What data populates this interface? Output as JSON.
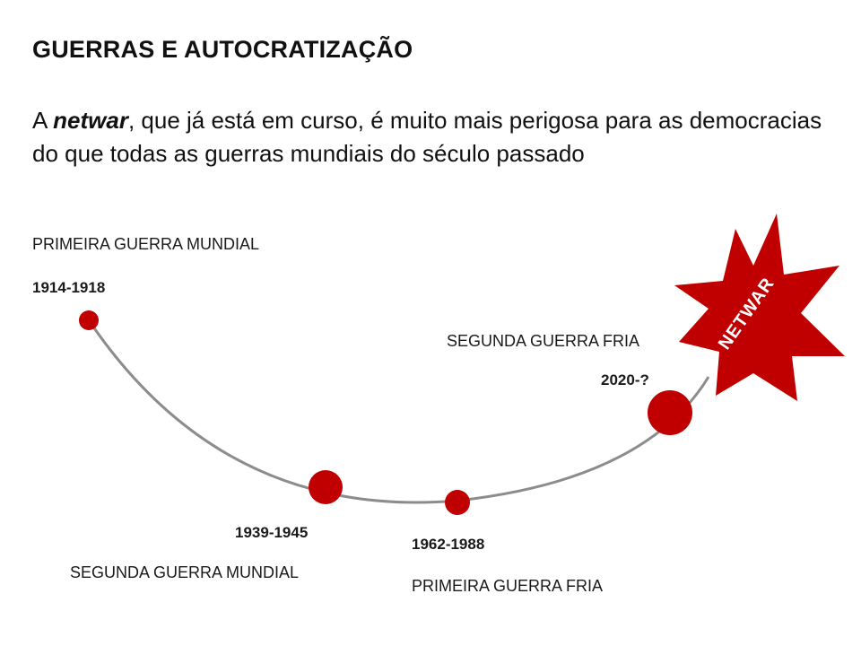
{
  "slide": {
    "title": "GUERRAS E AUTOCRATIZAÇÃO",
    "subtitle": {
      "prefix": "A ",
      "emphasis": "netwar",
      "suffix": ", que já está em curso, é muito mais perigosa para as democracias do que todas as guerras mundiais do século passado"
    }
  },
  "timeline": {
    "line_color": "#8c8c8c",
    "marker_color": "#c00000",
    "events": [
      {
        "name": "PRIMEIRA GUERRA MUNDIAL",
        "period": "1914-1918",
        "size": "small"
      },
      {
        "name": "SEGUNDA GUERRA MUNDIAL",
        "period": "1939-1945",
        "size": "medium"
      },
      {
        "name": "PRIMEIRA GUERRA FRIA",
        "period": "1962-1988",
        "size": "small"
      },
      {
        "name": "SEGUNDA GUERRA FRIA",
        "period": "2020-?",
        "size": "large"
      }
    ],
    "burst": {
      "label": "NETWAR",
      "color": "#c00000",
      "text_color": "#ffffff"
    }
  }
}
